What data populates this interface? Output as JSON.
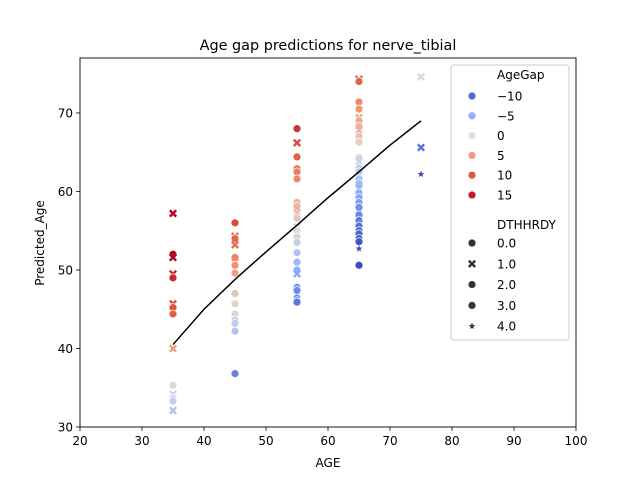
{
  "chart_data": {
    "type": "scatter",
    "title": "Age gap predictions for nerve_tibial",
    "xlabel": "AGE",
    "ylabel": "Predicted_Age",
    "xlim": [
      20,
      100
    ],
    "ylim": [
      30,
      77
    ],
    "xticks": [
      "20",
      "30",
      "40",
      "50",
      "60",
      "70",
      "80",
      "90",
      "100"
    ],
    "yticks": [
      "30",
      "40",
      "50",
      "60",
      "70"
    ],
    "grid": false,
    "legend_position": "top-right",
    "hue_title": "AgeGap",
    "hue_entries": [
      {
        "label": "−10",
        "value": -10
      },
      {
        "label": "−5",
        "value": -5
      },
      {
        "label": "0",
        "value": 0
      },
      {
        "label": "5",
        "value": 5
      },
      {
        "label": "10",
        "value": 10
      },
      {
        "label": "15",
        "value": 15
      }
    ],
    "style_title": "DTHHRDY",
    "style_entries": [
      {
        "label": "0.0",
        "marker": "circle"
      },
      {
        "label": "1.0",
        "marker": "x"
      },
      {
        "label": "2.0",
        "marker": "circle"
      },
      {
        "label": "3.0",
        "marker": "circle"
      },
      {
        "label": "4.0",
        "marker": "star"
      }
    ],
    "trend_line": {
      "x": [
        35,
        40,
        45,
        50,
        55,
        60,
        65,
        70,
        75
      ],
      "y": [
        40.5,
        45.0,
        48.8,
        52.3,
        55.7,
        59.2,
        62.5,
        65.9,
        69.0
      ]
    },
    "points": [
      {
        "x": 35,
        "y": 57.2,
        "m": "x"
      },
      {
        "x": 35,
        "y": 52.0,
        "m": "circle"
      },
      {
        "x": 35,
        "y": 51.6,
        "m": "x"
      },
      {
        "x": 35,
        "y": 49.5,
        "m": "x"
      },
      {
        "x": 35,
        "y": 49.0,
        "m": "circle"
      },
      {
        "x": 35,
        "y": 45.7,
        "m": "x"
      },
      {
        "x": 35,
        "y": 45.2,
        "m": "circle"
      },
      {
        "x": 35,
        "y": 44.4,
        "m": "circle"
      },
      {
        "x": 35,
        "y": 40.0,
        "m": "x"
      },
      {
        "x": 35,
        "y": 35.3,
        "m": "circle"
      },
      {
        "x": 35,
        "y": 34.2,
        "m": "x"
      },
      {
        "x": 35,
        "y": 33.6,
        "m": "circle"
      },
      {
        "x": 35,
        "y": 33.3,
        "m": "circle"
      },
      {
        "x": 35,
        "y": 32.1,
        "m": "x"
      },
      {
        "x": 45,
        "y": 56.0,
        "m": "circle"
      },
      {
        "x": 45,
        "y": 54.3,
        "m": "x"
      },
      {
        "x": 45,
        "y": 54.0,
        "m": "circle"
      },
      {
        "x": 45,
        "y": 53.2,
        "m": "x"
      },
      {
        "x": 45,
        "y": 51.6,
        "m": "circle"
      },
      {
        "x": 45,
        "y": 51.0,
        "m": "x"
      },
      {
        "x": 45,
        "y": 50.6,
        "m": "circle"
      },
      {
        "x": 45,
        "y": 49.6,
        "m": "circle"
      },
      {
        "x": 45,
        "y": 47.0,
        "m": "circle"
      },
      {
        "x": 45,
        "y": 45.7,
        "m": "circle"
      },
      {
        "x": 45,
        "y": 44.4,
        "m": "circle"
      },
      {
        "x": 45,
        "y": 43.6,
        "m": "circle"
      },
      {
        "x": 45,
        "y": 43.2,
        "m": "circle"
      },
      {
        "x": 45,
        "y": 42.2,
        "m": "circle"
      },
      {
        "x": 45,
        "y": 36.8,
        "m": "circle"
      },
      {
        "x": 55,
        "y": 68.0,
        "m": "circle"
      },
      {
        "x": 55,
        "y": 66.2,
        "m": "x"
      },
      {
        "x": 55,
        "y": 64.4,
        "m": "circle"
      },
      {
        "x": 55,
        "y": 62.9,
        "m": "circle"
      },
      {
        "x": 55,
        "y": 62.5,
        "m": "circle"
      },
      {
        "x": 55,
        "y": 61.6,
        "m": "circle"
      },
      {
        "x": 55,
        "y": 58.6,
        "m": "circle"
      },
      {
        "x": 55,
        "y": 58.1,
        "m": "circle"
      },
      {
        "x": 55,
        "y": 57.3,
        "m": "x"
      },
      {
        "x": 55,
        "y": 56.6,
        "m": "circle"
      },
      {
        "x": 55,
        "y": 55.5,
        "m": "x"
      },
      {
        "x": 55,
        "y": 55.0,
        "m": "circle"
      },
      {
        "x": 55,
        "y": 54.2,
        "m": "circle"
      },
      {
        "x": 55,
        "y": 53.5,
        "m": "circle"
      },
      {
        "x": 55,
        "y": 52.2,
        "m": "circle"
      },
      {
        "x": 55,
        "y": 51.0,
        "m": "circle"
      },
      {
        "x": 55,
        "y": 50.0,
        "m": "circle"
      },
      {
        "x": 55,
        "y": 49.5,
        "m": "x"
      },
      {
        "x": 55,
        "y": 47.8,
        "m": "circle"
      },
      {
        "x": 55,
        "y": 47.4,
        "m": "circle"
      },
      {
        "x": 55,
        "y": 46.4,
        "m": "circle"
      },
      {
        "x": 55,
        "y": 46.1,
        "m": "circle"
      },
      {
        "x": 55,
        "y": 45.9,
        "m": "circle"
      },
      {
        "x": 65,
        "y": 74.3,
        "m": "x"
      },
      {
        "x": 65,
        "y": 74.0,
        "m": "circle"
      },
      {
        "x": 65,
        "y": 71.4,
        "m": "circle"
      },
      {
        "x": 65,
        "y": 70.5,
        "m": "circle"
      },
      {
        "x": 65,
        "y": 69.4,
        "m": "x"
      },
      {
        "x": 65,
        "y": 69.0,
        "m": "circle"
      },
      {
        "x": 65,
        "y": 68.3,
        "m": "circle"
      },
      {
        "x": 65,
        "y": 67.8,
        "m": "x"
      },
      {
        "x": 65,
        "y": 67.0,
        "m": "circle"
      },
      {
        "x": 65,
        "y": 66.3,
        "m": "circle"
      },
      {
        "x": 65,
        "y": 64.3,
        "m": "circle"
      },
      {
        "x": 65,
        "y": 63.8,
        "m": "x"
      },
      {
        "x": 65,
        "y": 63.0,
        "m": "circle"
      },
      {
        "x": 65,
        "y": 62.5,
        "m": "circle"
      },
      {
        "x": 65,
        "y": 61.6,
        "m": "circle"
      },
      {
        "x": 65,
        "y": 61.0,
        "m": "circle"
      },
      {
        "x": 65,
        "y": 60.4,
        "m": "x"
      },
      {
        "x": 65,
        "y": 59.8,
        "m": "circle"
      },
      {
        "x": 65,
        "y": 59.2,
        "m": "circle"
      },
      {
        "x": 65,
        "y": 58.6,
        "m": "circle"
      },
      {
        "x": 65,
        "y": 58.0,
        "m": "circle"
      },
      {
        "x": 65,
        "y": 57.6,
        "m": "x"
      },
      {
        "x": 65,
        "y": 57.0,
        "m": "circle"
      },
      {
        "x": 65,
        "y": 56.3,
        "m": "circle"
      },
      {
        "x": 65,
        "y": 55.6,
        "m": "circle"
      },
      {
        "x": 65,
        "y": 55.0,
        "m": "circle"
      },
      {
        "x": 65,
        "y": 54.6,
        "m": "circle"
      },
      {
        "x": 65,
        "y": 54.0,
        "m": "circle"
      },
      {
        "x": 65,
        "y": 53.6,
        "m": "circle"
      },
      {
        "x": 65,
        "y": 52.7,
        "m": "star"
      },
      {
        "x": 65,
        "y": 50.6,
        "m": "circle"
      },
      {
        "x": 75,
        "y": 74.6,
        "m": "x"
      },
      {
        "x": 75,
        "y": 65.6,
        "m": "x"
      },
      {
        "x": 75,
        "y": 62.2,
        "m": "star"
      }
    ]
  }
}
